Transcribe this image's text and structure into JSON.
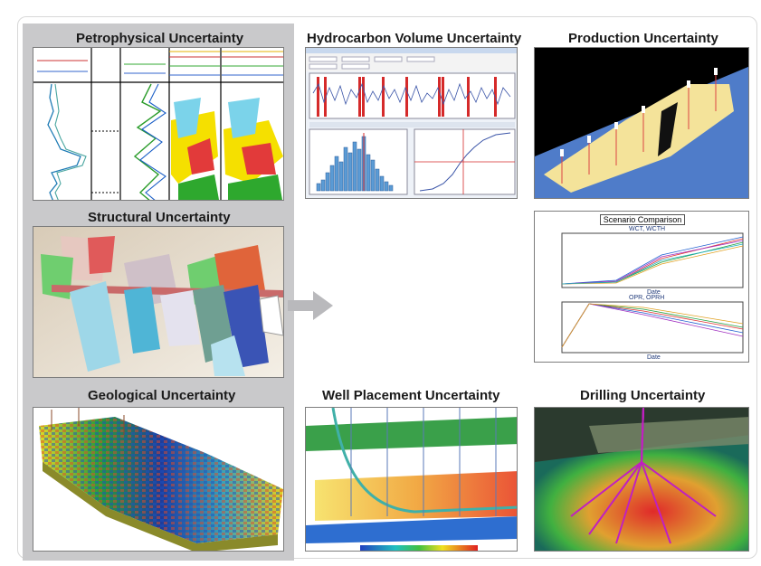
{
  "titles": {
    "petrophysical": "Petrophysical Uncertainty",
    "structural": "Structural Uncertainty",
    "geological": "Geological Uncertainty",
    "hydrocarbon": "Hydrocarbon Volume Uncertainty",
    "production": "Production Uncertainty",
    "well_placement": "Well Placement Uncertainty",
    "drilling": "Drilling Uncertainty"
  },
  "scenario": {
    "title": "Scenario Comparison",
    "chart1_title": "WCT, WCTH",
    "chart2_title": "OPR, OPRH",
    "xlabel": "Date"
  },
  "colors": {
    "panel_bg": "#c9c9cb",
    "arrow": "#b9b9bc"
  }
}
